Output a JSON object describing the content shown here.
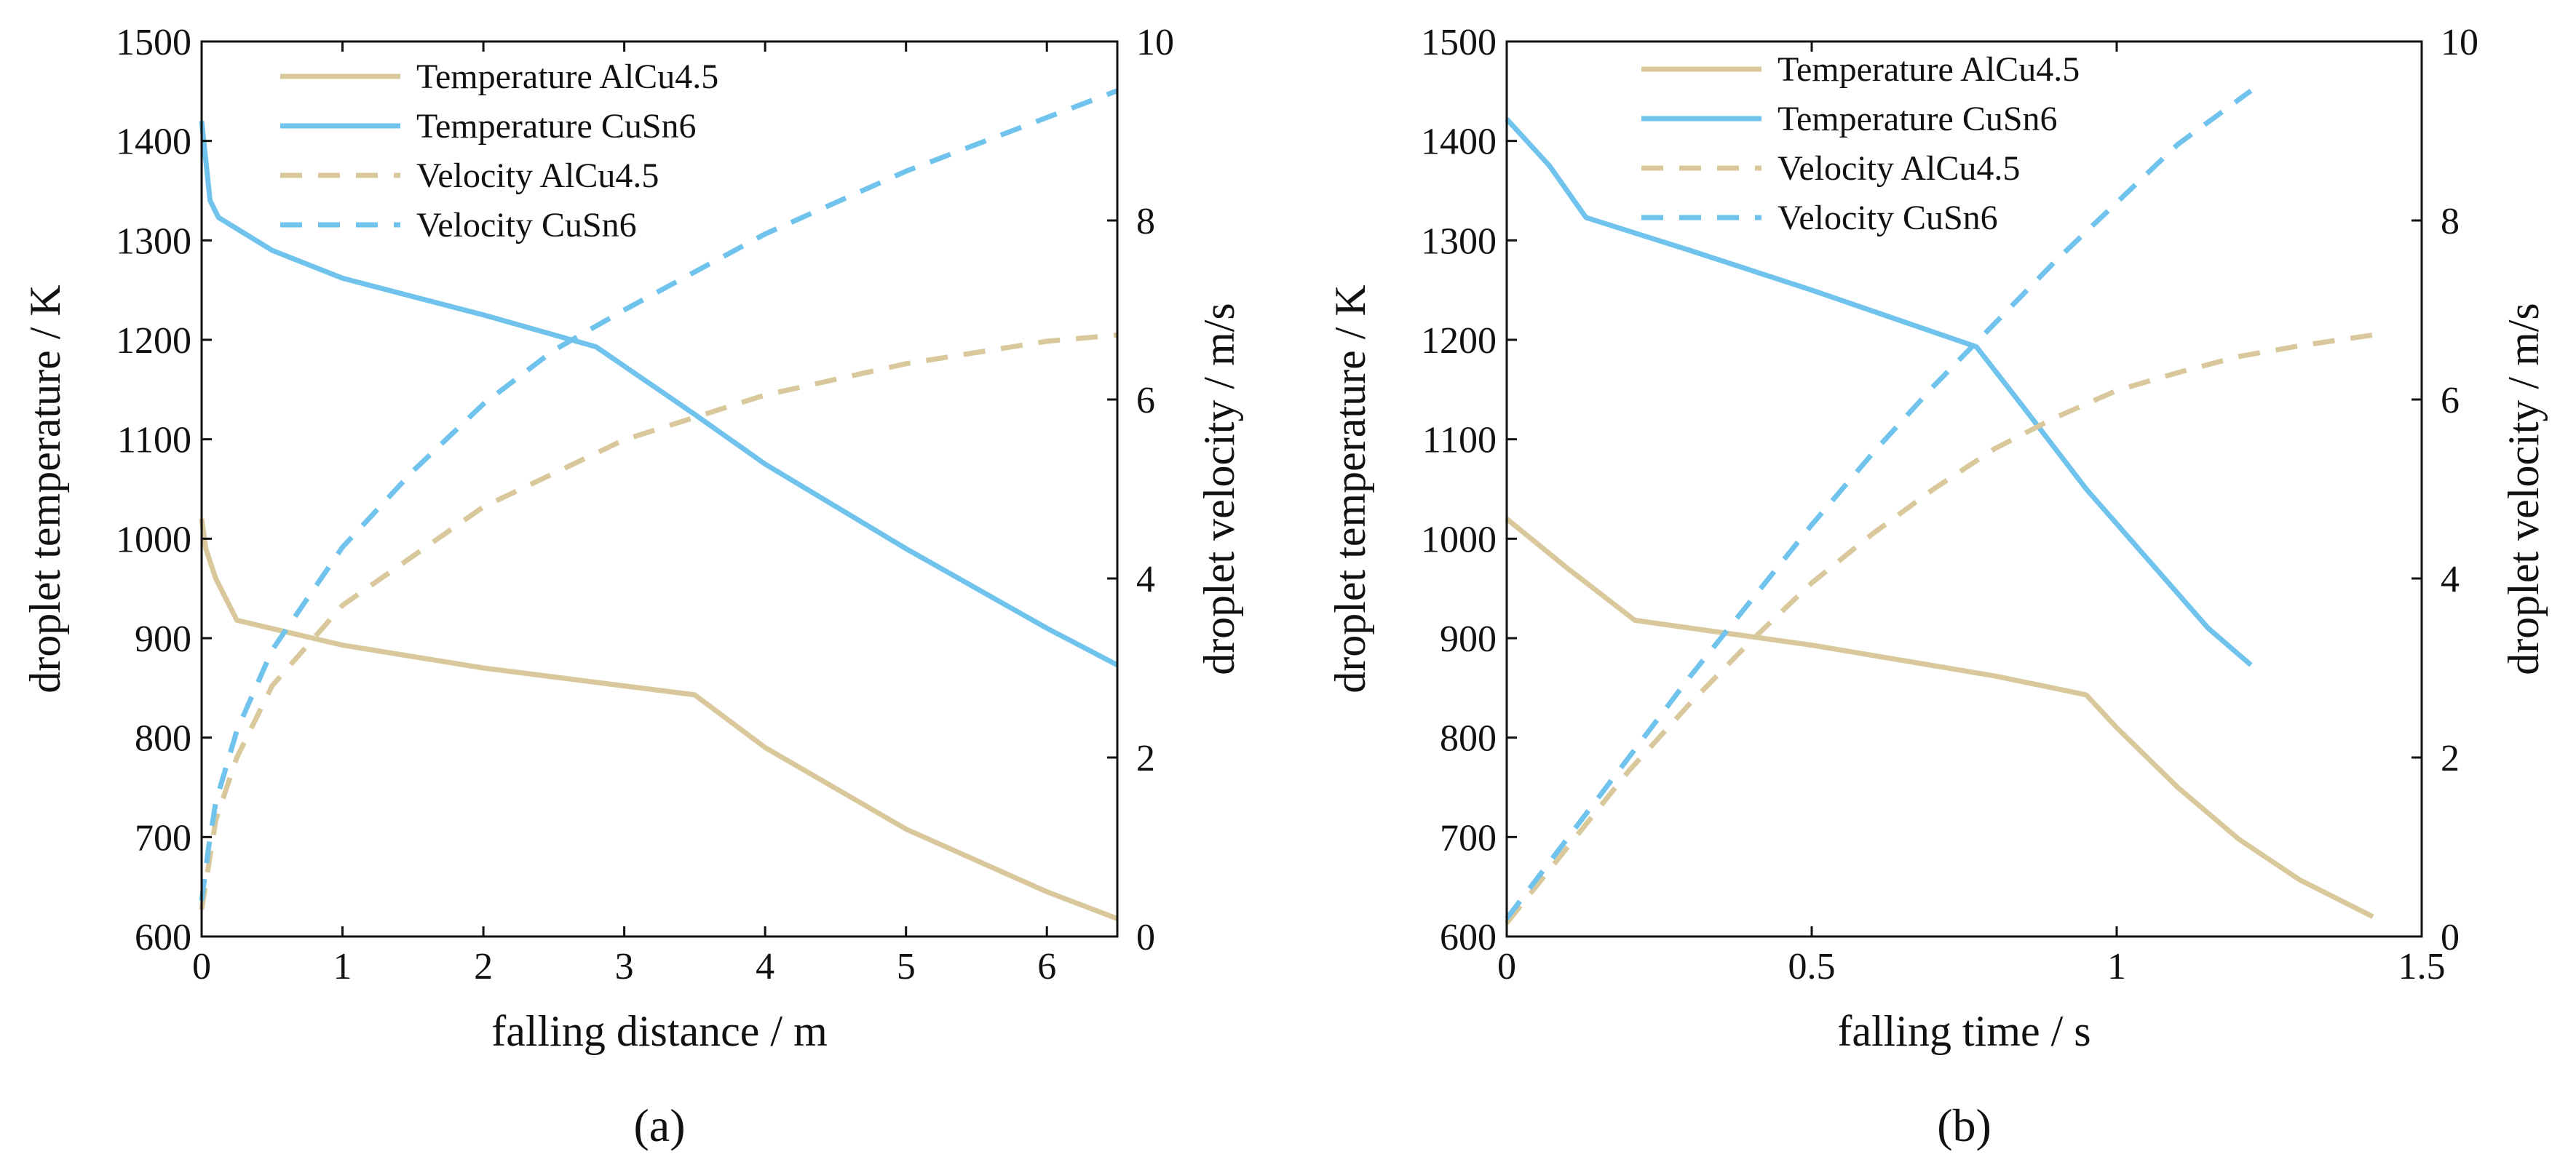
{
  "colors": {
    "alcu": "#d9c89b",
    "cusn": "#6fc3ec",
    "axis": "#111111"
  },
  "chart_data": [
    {
      "type": "line",
      "panel_label": "(a)",
      "xlabel": "falling distance / m",
      "ylabel_left": "droplet temperature / K",
      "ylabel_right": "droplet velocity / m/s",
      "xlim": [
        0,
        6.5
      ],
      "ylim_left": [
        600,
        1500
      ],
      "ylim_right": [
        0,
        10
      ],
      "xticks": [
        "0",
        "1",
        "2",
        "3",
        "4",
        "5",
        "6"
      ],
      "xtick_values": [
        0,
        1,
        2,
        3,
        4,
        5,
        6
      ],
      "yticks_left": [
        "600",
        "700",
        "800",
        "900",
        "1000",
        "1100",
        "1200",
        "1300",
        "1400",
        "1500"
      ],
      "ytick_values_left": [
        600,
        700,
        800,
        900,
        1000,
        1100,
        1200,
        1300,
        1400,
        1500
      ],
      "yticks_right": [
        "0",
        "2",
        "4",
        "6",
        "8",
        "10"
      ],
      "ytick_values_right": [
        0,
        2,
        4,
        6,
        8,
        10
      ],
      "legend_position": "top",
      "series": [
        {
          "name": "Temperature AlCu4.5",
          "axis": "left",
          "style": "solid",
          "color": "#d9c89b",
          "points": [
            [
              0,
              1020
            ],
            [
              0.03,
              990
            ],
            [
              0.1,
              960
            ],
            [
              0.25,
              918
            ],
            [
              1,
              893
            ],
            [
              2,
              870
            ],
            [
              3,
              852
            ],
            [
              3.5,
              843
            ],
            [
              4,
              790
            ],
            [
              5,
              708
            ],
            [
              6,
              645
            ],
            [
              6.5,
              618
            ]
          ]
        },
        {
          "name": "Temperature CuSn6",
          "axis": "left",
          "style": "solid",
          "color": "#6fc3ec",
          "points": [
            [
              0,
              1420
            ],
            [
              0.03,
              1380
            ],
            [
              0.06,
              1340
            ],
            [
              0.12,
              1323
            ],
            [
              0.5,
              1290
            ],
            [
              1,
              1262
            ],
            [
              2,
              1225
            ],
            [
              2.8,
              1193
            ],
            [
              3.5,
              1125
            ],
            [
              4,
              1075
            ],
            [
              5,
              990
            ],
            [
              6,
              910
            ],
            [
              6.5,
              873
            ]
          ]
        },
        {
          "name": "Velocity AlCu4.5",
          "axis": "right",
          "style": "dashed",
          "color": "#d9c89b",
          "points": [
            [
              0,
              0.3
            ],
            [
              0.1,
              1.3
            ],
            [
              0.25,
              2.0
            ],
            [
              0.5,
              2.8
            ],
            [
              1,
              3.7
            ],
            [
              2,
              4.8
            ],
            [
              3,
              5.55
            ],
            [
              4,
              6.05
            ],
            [
              5,
              6.4
            ],
            [
              6,
              6.65
            ],
            [
              6.5,
              6.72
            ]
          ]
        },
        {
          "name": "Velocity CuSn6",
          "axis": "right",
          "style": "dashed",
          "color": "#6fc3ec",
          "points": [
            [
              0,
              0.4
            ],
            [
              0.05,
              1.0
            ],
            [
              0.1,
              1.5
            ],
            [
              0.25,
              2.3
            ],
            [
              0.5,
              3.2
            ],
            [
              1,
              4.35
            ],
            [
              1.5,
              5.2
            ],
            [
              2,
              5.95
            ],
            [
              2.5,
              6.55
            ],
            [
              3,
              7.0
            ],
            [
              4,
              7.85
            ],
            [
              5,
              8.55
            ],
            [
              6,
              9.15
            ],
            [
              6.5,
              9.45
            ]
          ]
        }
      ]
    },
    {
      "type": "line",
      "panel_label": "(b)",
      "xlabel": "falling time / s",
      "ylabel_left": "droplet temperature / K",
      "ylabel_right": "droplet velocity / m/s",
      "xlim": [
        0,
        1.5
      ],
      "ylim_left": [
        600,
        1500
      ],
      "ylim_right": [
        0,
        10
      ],
      "xticks": [
        "0",
        "0.5",
        "1",
        "1.5"
      ],
      "xtick_values": [
        0,
        0.5,
        1,
        1.5
      ],
      "yticks_left": [
        "600",
        "700",
        "800",
        "900",
        "1000",
        "1100",
        "1200",
        "1300",
        "1400",
        "1500"
      ],
      "ytick_values_left": [
        600,
        700,
        800,
        900,
        1000,
        1100,
        1200,
        1300,
        1400,
        1500
      ],
      "yticks_right": [
        "0",
        "2",
        "4",
        "6",
        "8",
        "10"
      ],
      "ytick_values_right": [
        0,
        2,
        4,
        6,
        8,
        10
      ],
      "legend_position": "top",
      "series": [
        {
          "name": "Temperature AlCu4.5",
          "axis": "left",
          "style": "solid",
          "color": "#d9c89b",
          "points": [
            [
              0,
              1020
            ],
            [
              0.1,
              970
            ],
            [
              0.21,
              918
            ],
            [
              0.5,
              893
            ],
            [
              0.8,
              862
            ],
            [
              0.95,
              843
            ],
            [
              1.0,
              810
            ],
            [
              1.1,
              750
            ],
            [
              1.2,
              698
            ],
            [
              1.3,
              657
            ],
            [
              1.42,
              620
            ]
          ]
        },
        {
          "name": "Temperature CuSn6",
          "axis": "left",
          "style": "solid",
          "color": "#6fc3ec",
          "points": [
            [
              0,
              1422
            ],
            [
              0.07,
              1375
            ],
            [
              0.13,
              1323
            ],
            [
              0.3,
              1290
            ],
            [
              0.5,
              1250
            ],
            [
              0.77,
              1193
            ],
            [
              0.85,
              1130
            ],
            [
              0.95,
              1050
            ],
            [
              1.05,
              980
            ],
            [
              1.15,
              910
            ],
            [
              1.22,
              873
            ]
          ]
        },
        {
          "name": "Velocity AlCu4.5",
          "axis": "right",
          "style": "dashed",
          "color": "#d9c89b",
          "points": [
            [
              0,
              0.15
            ],
            [
              0.1,
              1.0
            ],
            [
              0.2,
              1.85
            ],
            [
              0.3,
              2.6
            ],
            [
              0.4,
              3.3
            ],
            [
              0.5,
              3.95
            ],
            [
              0.6,
              4.5
            ],
            [
              0.7,
              5.0
            ],
            [
              0.8,
              5.45
            ],
            [
              0.9,
              5.8
            ],
            [
              1.0,
              6.1
            ],
            [
              1.1,
              6.3
            ],
            [
              1.2,
              6.48
            ],
            [
              1.3,
              6.6
            ],
            [
              1.42,
              6.72
            ]
          ]
        },
        {
          "name": "Velocity CuSn6",
          "axis": "right",
          "style": "dashed",
          "color": "#6fc3ec",
          "points": [
            [
              0,
              0.2
            ],
            [
              0.1,
              1.1
            ],
            [
              0.2,
              2.0
            ],
            [
              0.3,
              2.9
            ],
            [
              0.4,
              3.75
            ],
            [
              0.5,
              4.6
            ],
            [
              0.6,
              5.4
            ],
            [
              0.7,
              6.15
            ],
            [
              0.8,
              6.85
            ],
            [
              0.9,
              7.55
            ],
            [
              1.0,
              8.2
            ],
            [
              1.1,
              8.85
            ],
            [
              1.22,
              9.45
            ]
          ]
        }
      ]
    }
  ]
}
